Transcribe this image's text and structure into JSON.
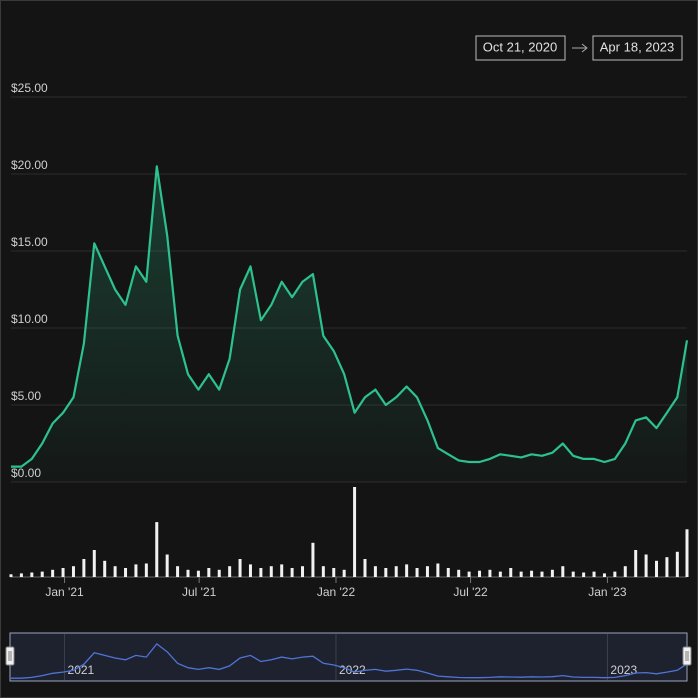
{
  "range_start": "Oct 21, 2020",
  "range_end": "Apr 18, 2023",
  "chart_data": {
    "type": "line",
    "color": "#2dc28d",
    "volume_color": "#f2f2f2",
    "navigator_color": "#4f74d6",
    "grid": true,
    "xlim": [
      "2020-10-21",
      "2023-04-18"
    ],
    "ylim": [
      0,
      25
    ],
    "yticks": [
      {
        "value": 0,
        "label": "$0.00"
      },
      {
        "value": 5,
        "label": "$5.00"
      },
      {
        "value": 10,
        "label": "$10.00"
      },
      {
        "value": 15,
        "label": "$15.00"
      },
      {
        "value": 20,
        "label": "$20.00"
      },
      {
        "value": 25,
        "label": "$25.00"
      }
    ],
    "xticks": [
      {
        "value": "2021-01-01",
        "label": "Jan '21"
      },
      {
        "value": "2021-07-01",
        "label": "Jul '21"
      },
      {
        "value": "2022-01-01",
        "label": "Jan '22"
      },
      {
        "value": "2022-07-01",
        "label": "Jul '22"
      },
      {
        "value": "2023-01-01",
        "label": "Jan '23"
      }
    ],
    "navigator_ticks": [
      {
        "value": "2021-01-01",
        "label": "2021"
      },
      {
        "value": "2022-01-01",
        "label": "2022"
      },
      {
        "value": "2023-01-01",
        "label": "2023"
      }
    ],
    "volume_lim": [
      0,
      100
    ],
    "x": [
      "2020-10-21",
      "2020-11-04",
      "2020-11-18",
      "2020-12-02",
      "2020-12-16",
      "2020-12-30",
      "2021-01-13",
      "2021-01-27",
      "2021-02-10",
      "2021-02-24",
      "2021-03-10",
      "2021-03-24",
      "2021-04-07",
      "2021-04-21",
      "2021-05-05",
      "2021-05-19",
      "2021-06-02",
      "2021-06-16",
      "2021-06-30",
      "2021-07-14",
      "2021-07-28",
      "2021-08-11",
      "2021-08-25",
      "2021-09-08",
      "2021-09-22",
      "2021-10-06",
      "2021-10-20",
      "2021-11-03",
      "2021-11-17",
      "2021-12-01",
      "2021-12-15",
      "2021-12-29",
      "2022-01-12",
      "2022-01-26",
      "2022-02-09",
      "2022-02-23",
      "2022-03-09",
      "2022-03-23",
      "2022-04-06",
      "2022-04-20",
      "2022-05-04",
      "2022-05-18",
      "2022-06-01",
      "2022-06-15",
      "2022-06-29",
      "2022-07-13",
      "2022-07-27",
      "2022-08-10",
      "2022-08-24",
      "2022-09-07",
      "2022-09-21",
      "2022-10-05",
      "2022-10-19",
      "2022-11-02",
      "2022-11-16",
      "2022-11-30",
      "2022-12-14",
      "2022-12-28",
      "2023-01-11",
      "2023-01-25",
      "2023-02-08",
      "2023-02-22",
      "2023-03-08",
      "2023-03-22",
      "2023-04-05",
      "2023-04-18"
    ],
    "values": [
      1.0,
      1.0,
      1.5,
      2.5,
      3.8,
      4.5,
      5.5,
      9.0,
      15.5,
      14.0,
      12.5,
      11.5,
      14.0,
      13.0,
      20.5,
      16.0,
      9.5,
      7.0,
      6.0,
      7.0,
      6.0,
      8.0,
      12.5,
      14.0,
      10.5,
      11.5,
      13.0,
      12.0,
      13.0,
      13.5,
      9.5,
      8.5,
      7.0,
      4.5,
      5.5,
      6.0,
      5.0,
      5.5,
      6.2,
      5.5,
      4.0,
      2.2,
      1.8,
      1.4,
      1.3,
      1.3,
      1.5,
      1.8,
      1.7,
      1.6,
      1.8,
      1.7,
      1.9,
      2.5,
      1.7,
      1.5,
      1.5,
      1.3,
      1.5,
      2.5,
      4.0,
      4.2,
      3.5,
      4.5,
      5.5,
      9.2
    ],
    "volume": [
      3,
      4,
      5,
      6,
      8,
      10,
      12,
      20,
      30,
      18,
      12,
      10,
      14,
      15,
      61,
      25,
      12,
      8,
      7,
      10,
      8,
      12,
      20,
      14,
      10,
      12,
      14,
      10,
      12,
      38,
      12,
      10,
      8,
      100,
      20,
      12,
      10,
      12,
      14,
      10,
      12,
      15,
      10,
      8,
      6,
      7,
      8,
      6,
      10,
      6,
      7,
      6,
      8,
      12,
      6,
      5,
      6,
      4,
      6,
      12,
      30,
      25,
      18,
      22,
      28,
      53
    ]
  }
}
